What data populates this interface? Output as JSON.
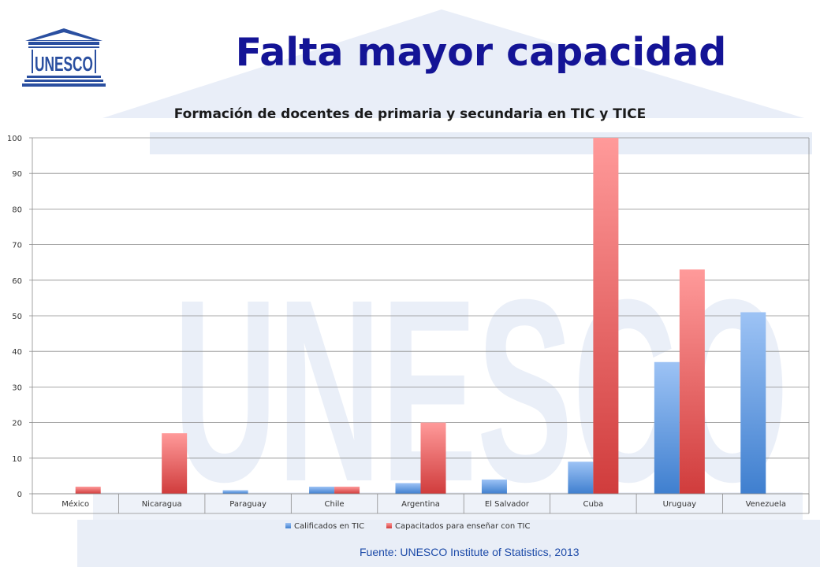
{
  "slide": {
    "title": "Falta mayor capacidad",
    "source": "Fuente: UNESCO Institute of Statistics, 2013",
    "logo_text": "UNESCO",
    "watermark_text": "UNESCO"
  },
  "colors": {
    "title": "#141496",
    "blue_series": "#4a86d4",
    "red_series": "#d94444",
    "grid": "#8c8c8c"
  },
  "chart_data": {
    "type": "bar",
    "title": "Formación de docentes de primaria y secundaria en TIC y TICE",
    "xlabel": "",
    "ylabel": "",
    "ylim": [
      0,
      100
    ],
    "yticks": [
      0,
      10,
      20,
      30,
      40,
      50,
      60,
      70,
      80,
      90,
      100
    ],
    "grid": true,
    "legend_position": "bottom",
    "categories": [
      "México",
      "Nicaragua",
      "Paraguay",
      "Chile",
      "Argentina",
      "El Salvador",
      "Cuba",
      "Uruguay",
      "Venezuela"
    ],
    "series": [
      {
        "name": "Calificados en TIC",
        "color": "#4a86d4",
        "values": [
          null,
          null,
          1,
          2,
          3,
          4,
          9,
          37,
          51
        ]
      },
      {
        "name": "Capacitados para enseñar con TIC",
        "color": "#d94444",
        "values": [
          2,
          17,
          null,
          2,
          20,
          null,
          100,
          63,
          null
        ]
      }
    ]
  }
}
